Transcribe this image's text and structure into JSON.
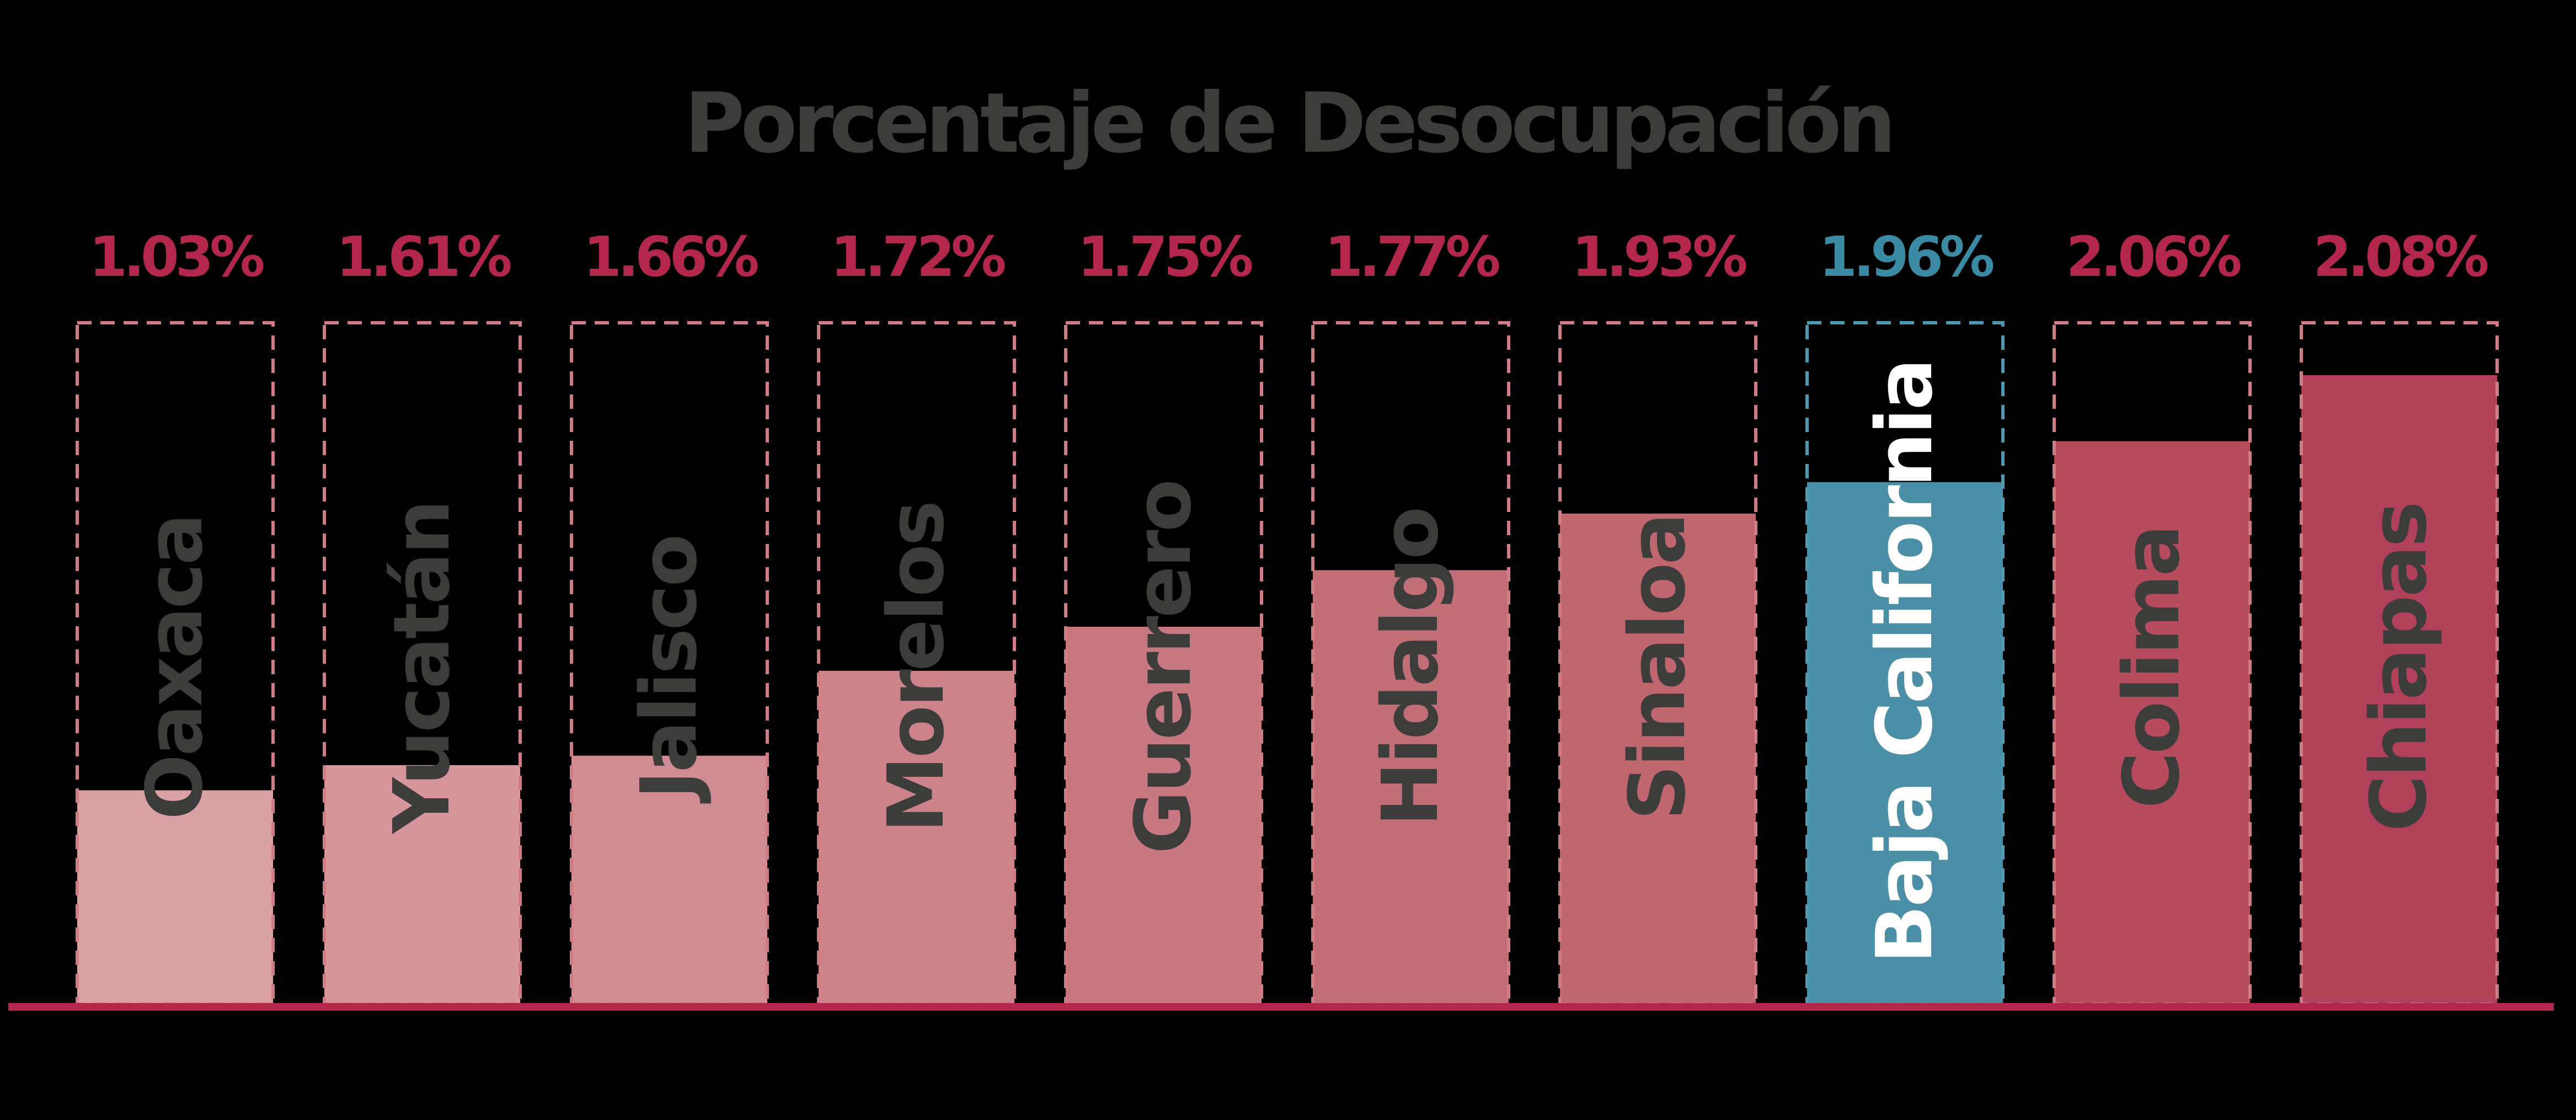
{
  "chart_data": {
    "type": "bar",
    "title": "Porcentaje de Desocupación",
    "categories": [
      "Oaxaca",
      "Yucatán",
      "Jalisco",
      "Morelos",
      "Guerrero",
      "Hidalgo",
      "Sinaloa",
      "Baja California",
      "Colima",
      "Chiapas"
    ],
    "values": [
      1.03,
      1.61,
      1.66,
      1.72,
      1.75,
      1.77,
      1.93,
      1.96,
      2.06,
      2.08
    ],
    "value_labels": [
      "1.03%",
      "1.61%",
      "1.66%",
      "1.72%",
      "1.75%",
      "1.77%",
      "1.93%",
      "1.96%",
      "2.06%",
      "2.08%"
    ],
    "bar_heights_relative": [
      0.34,
      0.38,
      0.395,
      0.53,
      0.6,
      0.69,
      0.78,
      0.83,
      0.895,
      1.0
    ],
    "highlighted_category": "Baja California",
    "bar_colors": [
      "#dba2a6",
      "#d6969c",
      "#d18c93",
      "#cc838a",
      "#c87880",
      "#c26e77",
      "#bf666f",
      "#4b8fa6",
      "#b84c5f",
      "#b04158"
    ],
    "label_colors": [
      "#3c3c3a",
      "#3c3c3a",
      "#3c3c3a",
      "#3c3c3a",
      "#3c3c3a",
      "#3c3c3a",
      "#3c3c3a",
      "#ffffff",
      "#3c3c3a",
      "#3c3c3a"
    ],
    "colors": {
      "background": "#000000",
      "title": "#3c3c3a",
      "value_text": "#b3284a",
      "highlight": "#3b8aa3",
      "outline": "#d27a86",
      "highlight_outline": "#4d9bb3",
      "baseline": "#b3284a"
    },
    "grid": false,
    "legend": "none"
  }
}
